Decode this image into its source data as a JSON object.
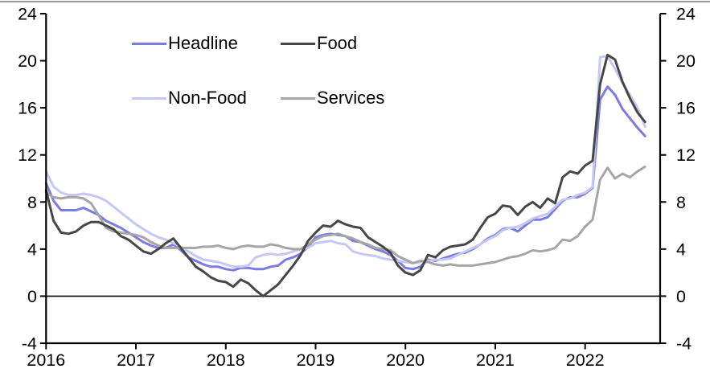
{
  "page": {
    "background": "#ffffff",
    "top_rule_color": "#9a9a9a"
  },
  "chart_data": {
    "type": "line",
    "x_unit": "month",
    "x_axis": {
      "tick_labels": [
        "2016",
        "2017",
        "2018",
        "2019",
        "2020",
        "2021",
        "2022"
      ]
    },
    "y_axis": {
      "range": [
        -4,
        24
      ],
      "tick_values": [
        -4,
        0,
        4,
        8,
        12,
        16,
        20,
        24
      ],
      "tick_labels_left": [
        "-4",
        "0",
        "4",
        "8",
        "12",
        "16",
        "20",
        "24"
      ],
      "tick_labels_right": [
        "-4",
        "0",
        "4",
        "8",
        "12",
        "16",
        "20",
        "24"
      ],
      "zero_line": true,
      "grid": false
    },
    "legend": {
      "position": "top-left-inside",
      "items": [
        {
          "label": "Headline",
          "color": "#7b7be6"
        },
        {
          "label": "Food",
          "color": "#474747"
        },
        {
          "label": "Non-Food",
          "color": "#c5c8f2"
        },
        {
          "label": "Services",
          "color": "#a6a6a6"
        }
      ]
    },
    "series": [
      {
        "name": "Headline",
        "color": "#7b7be6",
        "values": [
          9.6,
          8.1,
          7.3,
          7.3,
          7.3,
          7.5,
          7.2,
          6.9,
          6.4,
          6.1,
          5.8,
          5.4,
          5.0,
          4.6,
          4.3,
          4.1,
          4.1,
          4.4,
          3.9,
          3.3,
          3.0,
          2.7,
          2.5,
          2.5,
          2.3,
          2.2,
          2.4,
          2.4,
          2.3,
          2.3,
          2.5,
          2.6,
          3.1,
          3.3,
          3.6,
          4.2,
          5.0,
          5.2,
          5.3,
          5.2,
          5.1,
          4.7,
          4.6,
          4.3,
          4.0,
          3.8,
          3.5,
          3.0,
          2.4,
          2.3,
          2.5,
          3.1,
          3.0,
          3.2,
          3.4,
          3.6,
          3.7,
          4.0,
          4.4,
          4.9,
          5.2,
          5.7,
          5.8,
          5.5,
          6.0,
          6.5,
          6.5,
          6.7,
          7.4,
          8.1,
          8.4,
          8.4,
          8.7,
          9.2,
          16.7,
          17.8,
          17.1,
          15.9,
          15.1,
          14.3,
          13.6
        ]
      },
      {
        "name": "Food",
        "color": "#474747",
        "values": [
          9.0,
          6.4,
          5.4,
          5.3,
          5.5,
          6.0,
          6.3,
          6.3,
          6.0,
          5.7,
          5.1,
          4.8,
          4.3,
          3.8,
          3.6,
          4.0,
          4.5,
          4.9,
          4.1,
          3.3,
          2.5,
          2.1,
          1.6,
          1.3,
          1.2,
          0.8,
          1.4,
          1.1,
          0.5,
          0.0,
          0.5,
          1.0,
          1.8,
          2.6,
          3.5,
          4.7,
          5.4,
          6.0,
          5.9,
          6.4,
          6.1,
          5.9,
          5.8,
          5.0,
          4.6,
          4.2,
          3.7,
          2.6,
          2.0,
          1.8,
          2.2,
          3.5,
          3.3,
          3.9,
          4.2,
          4.3,
          4.4,
          4.8,
          5.8,
          6.7,
          7.0,
          7.7,
          7.6,
          6.9,
          7.6,
          8.0,
          7.5,
          8.3,
          7.9,
          10.1,
          10.6,
          10.4,
          11.1,
          11.5,
          18.0,
          20.5,
          20.1,
          18.2,
          16.8,
          15.6,
          14.8
        ]
      },
      {
        "name": "Non-Food",
        "color": "#c5c8f2",
        "values": [
          10.6,
          9.3,
          8.8,
          8.6,
          8.6,
          8.7,
          8.6,
          8.4,
          8.1,
          7.6,
          7.1,
          6.6,
          6.1,
          5.7,
          5.3,
          5.0,
          4.8,
          4.5,
          4.2,
          3.8,
          3.4,
          3.1,
          3.0,
          2.9,
          2.7,
          2.5,
          2.5,
          2.6,
          3.3,
          3.5,
          3.6,
          3.5,
          3.6,
          3.8,
          4.0,
          4.1,
          4.5,
          4.6,
          4.7,
          4.5,
          4.4,
          3.8,
          3.6,
          3.5,
          3.4,
          3.2,
          3.1,
          3.0,
          2.9,
          2.8,
          2.9,
          3.0,
          3.1,
          3.1,
          3.2,
          3.5,
          3.8,
          4.1,
          4.4,
          4.8,
          5.1,
          5.6,
          5.8,
          5.9,
          6.2,
          6.6,
          6.8,
          7.0,
          7.6,
          8.2,
          8.3,
          8.6,
          8.8,
          9.3,
          20.3,
          20.4,
          19.3,
          18.1,
          17.1,
          16.0,
          14.4
        ]
      },
      {
        "name": "Services",
        "color": "#a6a6a6",
        "values": [
          8.8,
          8.4,
          8.3,
          8.4,
          8.4,
          8.3,
          7.9,
          6.9,
          5.8,
          5.5,
          5.4,
          5.3,
          5.2,
          5.0,
          4.6,
          4.3,
          4.1,
          4.1,
          4.1,
          4.1,
          4.1,
          4.2,
          4.2,
          4.3,
          4.1,
          4.0,
          4.2,
          4.3,
          4.2,
          4.2,
          4.4,
          4.3,
          4.1,
          4.0,
          4.0,
          4.4,
          4.8,
          5.1,
          5.2,
          5.3,
          5.1,
          4.9,
          4.6,
          4.4,
          4.1,
          4.0,
          3.9,
          3.4,
          3.1,
          2.8,
          3.0,
          2.9,
          2.7,
          2.6,
          2.7,
          2.6,
          2.6,
          2.6,
          2.7,
          2.8,
          2.9,
          3.1,
          3.3,
          3.4,
          3.6,
          3.9,
          3.8,
          3.9,
          4.1,
          4.8,
          4.7,
          5.1,
          5.9,
          6.5,
          9.9,
          10.9,
          10.0,
          10.4,
          10.1,
          10.6,
          11.0
        ]
      }
    ]
  }
}
